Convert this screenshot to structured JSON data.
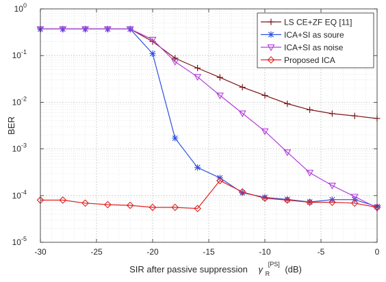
{
  "chart_data": {
    "type": "line",
    "title": "",
    "xlabel_main": "SIR after passive suppression",
    "xlabel_symbol": "γ",
    "xlabel_sub": "R",
    "xlabel_sup": "[PS]",
    "xlabel_unit": "(dB)",
    "ylabel": "BER",
    "xscale": "linear",
    "yscale": "log",
    "xlim": [
      -30,
      0
    ],
    "ylim": [
      1e-05,
      1
    ],
    "xticks": [
      -30,
      -25,
      -20,
      -15,
      -10,
      -5,
      0
    ],
    "xtick_labels": [
      "-30",
      "-25",
      "-20",
      "-15",
      "-10",
      "-5",
      "0"
    ],
    "yticks": [
      {
        "value": 1e-05,
        "base": "10",
        "exp": "-5"
      },
      {
        "value": 0.0001,
        "base": "10",
        "exp": "-4"
      },
      {
        "value": 0.001,
        "base": "10",
        "exp": "-3"
      },
      {
        "value": 0.01,
        "base": "10",
        "exp": "-2"
      },
      {
        "value": 0.1,
        "base": "10",
        "exp": "-1"
      },
      {
        "value": 1,
        "base": "10",
        "exp": "0"
      }
    ],
    "grid": true,
    "minor_grid": true,
    "legend_position": "top-right",
    "x": [
      -30,
      -28,
      -26,
      -24,
      -22,
      -20,
      -18,
      -16,
      -14,
      -12,
      -10,
      -8,
      -6,
      -4,
      -2,
      0
    ],
    "series": [
      {
        "name": "LS CE+ZF EQ [11]",
        "color": "#7b1416",
        "marker": "plus",
        "values": [
          0.37,
          0.37,
          0.37,
          0.37,
          0.37,
          0.2,
          0.088,
          0.054,
          0.034,
          0.021,
          0.014,
          0.0093,
          0.0069,
          0.0057,
          0.0051,
          0.0045
        ]
      },
      {
        "name": "ICA+SI as soure",
        "color": "#2a4fe0",
        "marker": "asterisk",
        "values": [
          0.37,
          0.37,
          0.37,
          0.37,
          0.37,
          0.11,
          0.0017,
          0.0004,
          0.00024,
          0.000115,
          9.2e-05,
          8.3e-05,
          7.3e-05,
          8.2e-05,
          8.2e-05,
          5.8e-05
        ]
      },
      {
        "name": "ICA+SI as noise",
        "color": "#b23bdc",
        "marker": "triangle-down",
        "values": [
          0.37,
          0.37,
          0.37,
          0.37,
          0.37,
          0.22,
          0.074,
          0.035,
          0.014,
          0.0058,
          0.0024,
          0.00085,
          0.00031,
          0.000165,
          9.5e-05,
          5.5e-05
        ]
      },
      {
        "name": "Proposed ICA",
        "color": "#e02020",
        "marker": "diamond",
        "values": [
          8e-05,
          8e-05,
          6.9e-05,
          6.4e-05,
          6.2e-05,
          5.6e-05,
          5.6e-05,
          5.3e-05,
          0.00021,
          0.00012,
          8.8e-05,
          8e-05,
          7.2e-05,
          7.2e-05,
          6.9e-05,
          5.6e-05
        ]
      }
    ]
  }
}
